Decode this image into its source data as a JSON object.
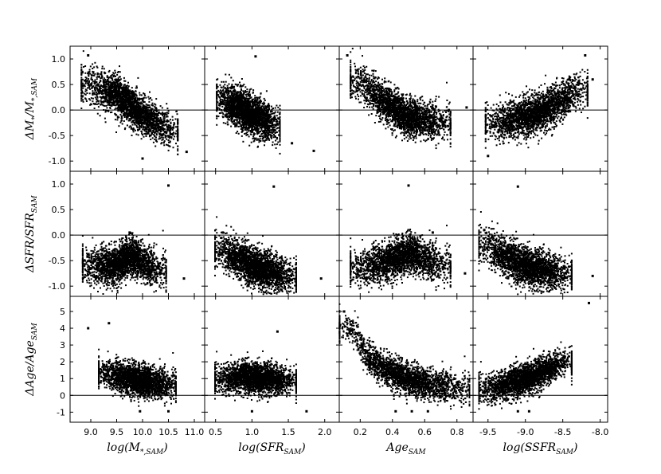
{
  "figure": {
    "rows": [
      {
        "ylabel_main": "ΔM",
        "ylabel_sub1": "*",
        "ylabel_mid": "/M",
        "ylabel_sub2": "*,SAM",
        "ylim": [
          -1.2,
          1.25
        ],
        "yticks": [
          -1.0,
          -0.5,
          0.0,
          0.5,
          1.0
        ],
        "ytick_labels": [
          "-1.0",
          "-0.5",
          "0.0",
          "0.5",
          "1.0"
        ]
      },
      {
        "ylabel_main": "ΔSFR/SFR",
        "ylabel_sub1": "SAM",
        "ylabel_mid": "",
        "ylabel_sub2": "",
        "ylim": [
          -1.2,
          1.25
        ],
        "yticks": [
          -1.0,
          -0.5,
          0.0,
          0.5,
          1.0
        ],
        "ytick_labels": [
          "-1.0",
          "-0.5",
          "0.0",
          "0.5",
          "1.0"
        ]
      },
      {
        "ylabel_main": "ΔAge/Age",
        "ylabel_sub1": "SAM",
        "ylabel_mid": "",
        "ylabel_sub2": "",
        "ylim": [
          -1.6,
          5.9
        ],
        "yticks": [
          -1,
          0,
          1,
          2,
          3,
          4,
          5
        ],
        "ytick_labels": [
          "-1",
          "0",
          "1",
          "2",
          "3",
          "4",
          "5"
        ]
      }
    ],
    "cols": [
      {
        "xlabel_main": "log(M",
        "xlabel_sub": "*,SAM",
        "xlabel_end": ")",
        "xlim": [
          8.6,
          11.2
        ],
        "xticks": [
          9.0,
          9.5,
          10.0,
          10.5,
          11.0
        ],
        "xtick_labels": [
          "9.0",
          "9.5",
          "10.0",
          "10.5",
          "11.0"
        ]
      },
      {
        "xlabel_main": "log(SFR",
        "xlabel_sub": "SAM",
        "xlabel_end": ")",
        "xlim": [
          0.35,
          2.2
        ],
        "xticks": [
          0.5,
          1.0,
          1.5,
          2.0
        ],
        "xtick_labels": [
          "0.5",
          "1.0",
          "1.5",
          "2.0"
        ]
      },
      {
        "xlabel_main": "Age",
        "xlabel_sub": "SAM",
        "xlabel_end": "",
        "xlim": [
          0.07,
          0.9
        ],
        "xticks": [
          0.2,
          0.4,
          0.6,
          0.8
        ],
        "xtick_labels": [
          "0.2",
          "0.4",
          "0.6",
          "0.8"
        ]
      },
      {
        "xlabel_main": "log(SSFR",
        "xlabel_sub": "SAM",
        "xlabel_end": ")",
        "xlim": [
          -9.7,
          -7.9
        ],
        "xticks": [
          -9.5,
          -9.0,
          -8.5,
          -8.0
        ],
        "xtick_labels": [
          "-9.5",
          "-9.0",
          "-8.5",
          "-8.0"
        ]
      }
    ],
    "reference_lines": {
      "row0": 0.0,
      "row1": 0.0,
      "row2": 0.0
    },
    "point_color": "#000000"
  },
  "chart_data": {
    "type": "scatter",
    "layout": "3x4 scatter matrix, shared x per column, shared y per row",
    "grid": false,
    "n_points_per_panel": 2500,
    "panels": [
      {
        "row": 0,
        "col": 0,
        "x": "log(M*,SAM)",
        "y": "ΔM*/M*,SAM",
        "trend": "anti-correlated",
        "core": [
          [
            9.0,
            0.5
          ],
          [
            9.5,
            0.3
          ],
          [
            10.0,
            -0.1
          ],
          [
            10.5,
            -0.4
          ]
        ],
        "outliers": [
          [
            8.95,
            1.07
          ],
          [
            10.85,
            -0.82
          ],
          [
            10.0,
            -0.95
          ]
        ]
      },
      {
        "row": 0,
        "col": 1,
        "x": "log(SFR_SAM)",
        "y": "ΔM*/M*,SAM",
        "trend": "anti-correlated",
        "core": [
          [
            0.6,
            0.2
          ],
          [
            0.8,
            0.05
          ],
          [
            1.0,
            -0.1
          ],
          [
            1.3,
            -0.3
          ]
        ],
        "outliers": [
          [
            1.05,
            1.05
          ],
          [
            1.55,
            -0.65
          ],
          [
            1.85,
            -0.8
          ]
        ]
      },
      {
        "row": 0,
        "col": 2,
        "x": "Age_SAM",
        "y": "ΔM*/M*,SAM",
        "trend": "decreasing then flat",
        "core": [
          [
            0.2,
            0.55
          ],
          [
            0.35,
            0.15
          ],
          [
            0.5,
            -0.15
          ],
          [
            0.7,
            -0.25
          ]
        ],
        "outliers": [
          [
            0.12,
            1.07
          ],
          [
            0.75,
            0.0
          ],
          [
            0.86,
            0.05
          ]
        ]
      },
      {
        "row": 0,
        "col": 3,
        "x": "log(SSFR_SAM)",
        "y": "ΔM*/M*,SAM",
        "trend": "correlated",
        "core": [
          [
            -9.4,
            -0.25
          ],
          [
            -9.0,
            -0.15
          ],
          [
            -8.6,
            0.1
          ],
          [
            -8.3,
            0.4
          ]
        ],
        "outliers": [
          [
            -8.2,
            1.07
          ],
          [
            -9.5,
            -0.9
          ],
          [
            -8.1,
            0.6
          ]
        ]
      },
      {
        "row": 1,
        "col": 0,
        "x": "log(M*,SAM)",
        "y": "ΔSFR/SFR_SAM",
        "trend": "triangular, widest near 9.7",
        "core": [
          [
            9.0,
            -0.6
          ],
          [
            9.5,
            -0.6
          ],
          [
            9.75,
            -0.4
          ],
          [
            10.3,
            -0.7
          ]
        ],
        "outliers": [
          [
            10.5,
            0.97
          ],
          [
            9.75,
            0.05
          ],
          [
            10.8,
            -0.85
          ]
        ]
      },
      {
        "row": 1,
        "col": 1,
        "x": "log(SFR_SAM)",
        "y": "ΔSFR/SFR_SAM",
        "trend": "anti-correlated",
        "core": [
          [
            0.6,
            -0.3
          ],
          [
            0.9,
            -0.55
          ],
          [
            1.2,
            -0.7
          ],
          [
            1.5,
            -0.8
          ]
        ],
        "outliers": [
          [
            1.3,
            0.95
          ],
          [
            0.6,
            0.05
          ],
          [
            1.95,
            -0.85
          ]
        ]
      },
      {
        "row": 1,
        "col": 2,
        "x": "Age_SAM",
        "y": "ΔSFR/SFR_SAM",
        "trend": "hump near 0.5",
        "core": [
          [
            0.2,
            -0.65
          ],
          [
            0.4,
            -0.5
          ],
          [
            0.5,
            -0.35
          ],
          [
            0.7,
            -0.6
          ]
        ],
        "outliers": [
          [
            0.5,
            0.97
          ],
          [
            0.65,
            0.05
          ],
          [
            0.85,
            -0.75
          ]
        ]
      },
      {
        "row": 1,
        "col": 3,
        "x": "log(SSFR_SAM)",
        "y": "ΔSFR/SFR_SAM",
        "trend": "anti-correlated",
        "core": [
          [
            -9.5,
            -0.2
          ],
          [
            -9.2,
            -0.5
          ],
          [
            -8.9,
            -0.65
          ],
          [
            -8.5,
            -0.75
          ]
        ],
        "outliers": [
          [
            -9.1,
            0.95
          ],
          [
            -9.55,
            0.1
          ],
          [
            -8.1,
            -0.8
          ]
        ]
      },
      {
        "row": 2,
        "col": 0,
        "x": "log(M*,SAM)",
        "y": "ΔAge/Age_SAM",
        "trend": "flat, declining scatter",
        "core": [
          [
            9.3,
            1.3
          ],
          [
            9.7,
            1.0
          ],
          [
            10.1,
            0.8
          ],
          [
            10.5,
            0.6
          ]
        ],
        "outliers": [
          [
            8.95,
            4.0
          ],
          [
            9.35,
            4.3
          ],
          [
            9.95,
            -0.95
          ],
          [
            10.5,
            -0.95
          ]
        ]
      },
      {
        "row": 2,
        "col": 1,
        "x": "log(SFR_SAM)",
        "y": "ΔAge/Age_SAM",
        "trend": "flat",
        "core": [
          [
            0.6,
            1.0
          ],
          [
            0.9,
            1.1
          ],
          [
            1.2,
            1.0
          ],
          [
            1.5,
            0.9
          ]
        ],
        "outliers": [
          [
            1.35,
            3.8
          ],
          [
            1.0,
            -0.95
          ],
          [
            1.75,
            -0.95
          ]
        ]
      },
      {
        "row": 2,
        "col": 2,
        "x": "Age_SAM",
        "y": "ΔAge/Age_SAM",
        "trend": "strongly decreasing",
        "core": [
          [
            0.15,
            4.0
          ],
          [
            0.25,
            2.2
          ],
          [
            0.4,
            1.3
          ],
          [
            0.6,
            0.7
          ],
          [
            0.8,
            0.4
          ]
        ],
        "outliers": [
          [
            0.1,
            5.0
          ],
          [
            0.42,
            -0.95
          ],
          [
            0.52,
            -0.95
          ],
          [
            0.62,
            -0.95
          ]
        ]
      },
      {
        "row": 2,
        "col": 3,
        "x": "log(SSFR_SAM)",
        "y": "ΔAge/Age_SAM",
        "trend": "correlated",
        "core": [
          [
            -9.5,
            0.4
          ],
          [
            -9.2,
            0.7
          ],
          [
            -8.8,
            1.3
          ],
          [
            -8.5,
            2.0
          ]
        ],
        "outliers": [
          [
            -8.15,
            5.5
          ],
          [
            -9.1,
            -0.95
          ],
          [
            -8.95,
            -0.95
          ]
        ]
      }
    ]
  }
}
